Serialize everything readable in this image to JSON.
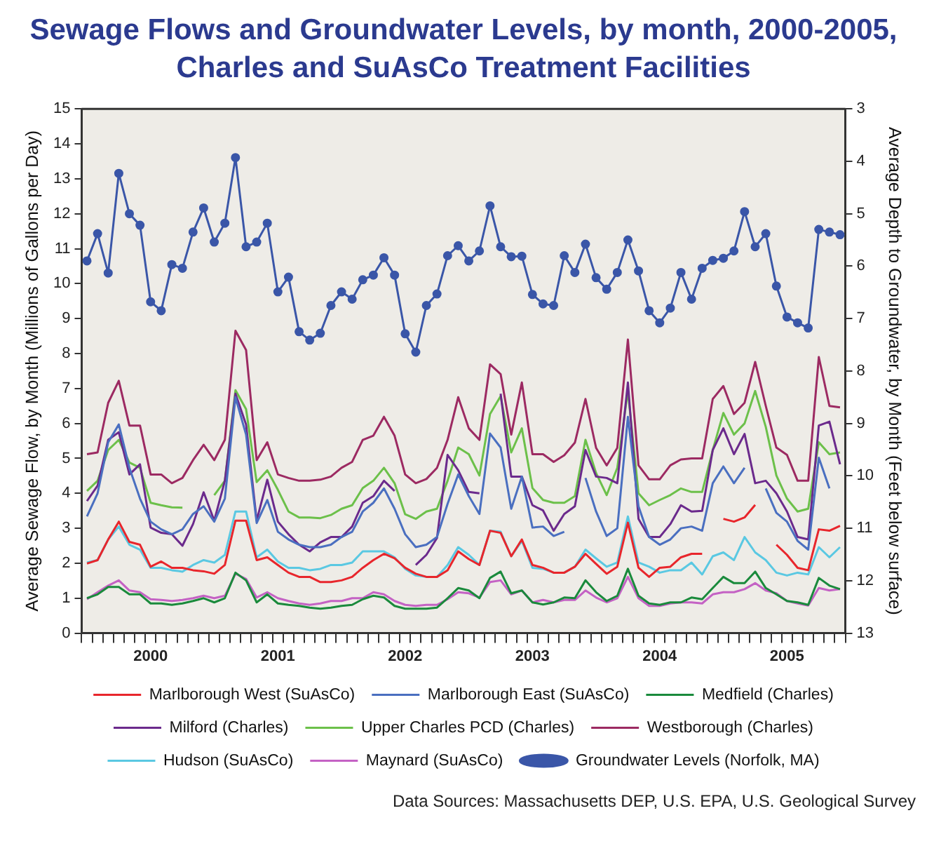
{
  "chart_data": {
    "type": "line",
    "title": "Sewage Flows and Groundwater Levels, by month, 2000-2005, Charles and SuAsCo Treatment Facilities",
    "ylabel": "Average Sewage Flow, by Month (Millions of Gallons per Day)",
    "y2label": "Average Depth to Groundwater, by Month (Feet below surface)",
    "annotations": [
      "Data Sources: Massachusetts DEP, U.S. EPA, U.S. Geological Survey"
    ],
    "categories": [
      null,
      null,
      null,
      null,
      null,
      null,
      "2000",
      null,
      null,
      null,
      null,
      null,
      null,
      null,
      null,
      null,
      null,
      null,
      "2001",
      null,
      null,
      null,
      null,
      null,
      null,
      null,
      null,
      null,
      null,
      null,
      "2002",
      null,
      null,
      null,
      null,
      null,
      null,
      null,
      null,
      null,
      null,
      null,
      "2003",
      null,
      null,
      null,
      null,
      null,
      null,
      null,
      null,
      null,
      null,
      null,
      "2004",
      null,
      null,
      null,
      null,
      null,
      null,
      null,
      null,
      null,
      null,
      null,
      "2005",
      null,
      null,
      null,
      null,
      null
    ],
    "ylim": [
      0,
      15
    ],
    "yticks": [
      0,
      1,
      2,
      3,
      4,
      5,
      6,
      7,
      8,
      9,
      10,
      11,
      12,
      13,
      14,
      15
    ],
    "y2lim": [
      13,
      3
    ],
    "y2ticks": [
      3,
      4,
      5,
      6,
      7,
      8,
      9,
      10,
      11,
      12,
      13
    ],
    "grid": false,
    "legend": "bottom",
    "marker": "none",
    "line_style": "solid",
    "series": [
      {
        "name": "Marlborough West (SuAsCo)",
        "color": "#e8262c",
        "values": [
          1.99,
          2.09,
          2.68,
          3.19,
          2.61,
          2.53,
          1.9,
          2.05,
          1.87,
          1.87,
          1.8,
          1.77,
          1.7,
          1.95,
          3.22,
          3.22,
          2.09,
          2.17,
          1.95,
          1.73,
          1.61,
          1.61,
          1.46,
          1.46,
          1.51,
          1.61,
          1.87,
          2.09,
          2.27,
          2.14,
          1.87,
          1.7,
          1.61,
          1.61,
          1.8,
          2.34,
          2.12,
          1.95,
          2.93,
          2.87,
          2.2,
          2.68,
          1.95,
          1.87,
          1.73,
          1.73,
          1.9,
          2.27,
          1.98,
          1.7,
          1.9,
          3.16,
          1.87,
          1.61,
          1.87,
          1.9,
          2.17,
          2.27,
          2.27,
          null,
          3.27,
          3.19,
          3.31,
          3.67,
          null,
          2.53,
          2.24,
          1.87,
          1.8,
          2.97,
          2.93,
          3.07
        ]
      },
      {
        "name": "Marlborough East (SuAsCo)",
        "color": "#4a6fc0",
        "values": [
          3.34,
          4.0,
          5.46,
          5.97,
          4.73,
          3.85,
          3.19,
          2.97,
          2.83,
          2.97,
          3.41,
          3.63,
          3.19,
          3.85,
          6.75,
          5.68,
          3.15,
          3.81,
          2.9,
          2.68,
          2.53,
          2.46,
          2.46,
          2.53,
          2.75,
          2.9,
          3.48,
          3.73,
          4.14,
          3.56,
          2.83,
          2.46,
          2.53,
          2.75,
          3.7,
          4.54,
          3.92,
          3.41,
          5.71,
          5.31,
          3.56,
          4.48,
          3.02,
          3.05,
          2.78,
          2.9,
          null,
          4.44,
          3.48,
          2.78,
          3.0,
          6.19,
          3.63,
          2.75,
          2.53,
          2.68,
          3.0,
          3.05,
          2.93,
          4.29,
          4.77,
          4.29,
          4.73,
          null,
          4.14,
          3.44,
          3.19,
          2.64,
          2.39,
          5.02,
          4.14,
          null
        ]
      },
      {
        "name": "Medfield (Charles)",
        "color": "#1a8a3c",
        "values": [
          1.0,
          1.11,
          1.32,
          1.32,
          1.11,
          1.11,
          0.85,
          0.85,
          0.81,
          0.85,
          0.92,
          1.0,
          0.88,
          1.0,
          1.73,
          1.51,
          0.88,
          1.11,
          0.85,
          0.81,
          0.78,
          0.73,
          0.7,
          0.73,
          0.78,
          0.81,
          0.97,
          1.07,
          1.02,
          0.78,
          0.7,
          0.7,
          0.7,
          0.73,
          1.0,
          1.29,
          1.22,
          1.0,
          1.58,
          1.76,
          1.14,
          1.22,
          0.88,
          0.82,
          0.88,
          1.02,
          1.0,
          1.51,
          1.17,
          0.92,
          1.07,
          1.84,
          1.07,
          0.85,
          0.81,
          0.88,
          0.88,
          1.02,
          0.97,
          1.29,
          1.61,
          1.43,
          1.43,
          1.76,
          1.29,
          1.11,
          0.92,
          0.88,
          0.81,
          1.58,
          1.36,
          1.26
        ]
      },
      {
        "name": "Milford (Charles)",
        "color": "#6b2a8c",
        "values": [
          3.78,
          4.22,
          5.53,
          5.75,
          4.54,
          4.83,
          3.02,
          2.87,
          2.83,
          2.5,
          3.12,
          4.03,
          3.22,
          4.36,
          6.85,
          5.97,
          3.22,
          4.39,
          3.19,
          2.83,
          2.53,
          2.34,
          2.6,
          2.75,
          2.75,
          3.05,
          3.73,
          3.92,
          4.36,
          4.07,
          null,
          1.95,
          2.24,
          2.72,
          5.1,
          4.66,
          4.04,
          4.0,
          null,
          6.85,
          4.48,
          4.48,
          3.66,
          3.51,
          2.93,
          3.41,
          3.63,
          5.24,
          4.48,
          4.44,
          4.29,
          7.17,
          3.27,
          2.75,
          2.75,
          3.12,
          3.66,
          3.48,
          3.5,
          5.24,
          5.86,
          5.12,
          5.7,
          4.29,
          4.36,
          4.0,
          3.48,
          2.75,
          2.68,
          5.94,
          6.05,
          4.83
        ]
      },
      {
        "name": "Upper Charles PCD (Charles)",
        "color": "#6cc04a",
        "values": [
          4.07,
          4.36,
          5.24,
          5.53,
          4.88,
          4.73,
          3.73,
          3.66,
          3.6,
          3.59,
          null,
          null,
          3.95,
          4.36,
          6.95,
          6.41,
          4.32,
          4.66,
          4.1,
          3.48,
          3.31,
          3.31,
          3.29,
          3.38,
          3.56,
          3.66,
          4.15,
          4.36,
          4.73,
          4.29,
          3.4,
          3.27,
          3.48,
          3.56,
          4.36,
          5.31,
          5.12,
          4.51,
          6.27,
          6.78,
          5.17,
          5.86,
          4.15,
          3.81,
          3.73,
          3.73,
          3.92,
          5.53,
          4.58,
          3.95,
          4.73,
          6.93,
          4.0,
          3.66,
          3.81,
          3.95,
          4.14,
          4.04,
          4.04,
          5.24,
          6.3,
          5.68,
          6.0,
          6.93,
          5.9,
          4.51,
          3.85,
          3.48,
          3.56,
          5.46,
          5.12,
          5.17
        ]
      },
      {
        "name": "Westborough (Charles)",
        "color": "#9c2a62",
        "values": [
          5.12,
          5.17,
          6.59,
          7.22,
          5.94,
          5.94,
          4.54,
          4.54,
          4.29,
          4.44,
          4.95,
          5.39,
          4.95,
          5.53,
          8.65,
          8.1,
          4.95,
          5.46,
          4.54,
          4.44,
          4.36,
          4.36,
          4.39,
          4.48,
          4.73,
          4.9,
          5.53,
          5.65,
          6.19,
          5.65,
          4.54,
          4.29,
          4.41,
          4.73,
          5.53,
          6.75,
          5.86,
          5.53,
          7.69,
          7.41,
          5.68,
          7.17,
          5.12,
          5.12,
          4.9,
          5.09,
          5.45,
          6.7,
          5.3,
          4.8,
          5.3,
          8.4,
          4.8,
          4.4,
          4.4,
          4.8,
          4.97,
          5.0,
          5.0,
          6.7,
          7.07,
          6.27,
          6.59,
          7.76,
          6.5,
          5.31,
          5.1,
          4.36,
          4.36,
          7.9,
          6.5,
          6.46
        ]
      },
      {
        "name": "Hudson (SuAsCo)",
        "color": "#5ac8e2",
        "values": [
          2.02,
          2.09,
          2.68,
          3.05,
          2.53,
          2.39,
          1.87,
          1.87,
          1.8,
          1.76,
          1.95,
          2.09,
          2.02,
          2.24,
          3.48,
          3.48,
          2.17,
          2.39,
          2.05,
          1.87,
          1.87,
          1.8,
          1.84,
          1.95,
          1.95,
          2.02,
          2.34,
          2.34,
          2.34,
          2.17,
          1.84,
          1.65,
          1.61,
          1.61,
          1.95,
          2.46,
          2.24,
          1.95,
          2.93,
          2.9,
          2.2,
          2.64,
          1.87,
          1.84,
          1.73,
          1.73,
          1.9,
          2.39,
          2.14,
          1.9,
          2.02,
          3.34,
          2.02,
          1.9,
          1.73,
          1.8,
          1.8,
          2.02,
          1.68,
          2.2,
          2.31,
          2.09,
          2.75,
          2.31,
          2.09,
          1.73,
          1.65,
          1.73,
          1.68,
          2.46,
          2.17,
          2.46
        ]
      },
      {
        "name": "Maynard (SuAsCo)",
        "color": "#c462c4",
        "values": [
          0.97,
          1.17,
          1.36,
          1.51,
          1.22,
          1.17,
          0.97,
          0.95,
          0.92,
          0.95,
          1.0,
          1.07,
          1.0,
          1.07,
          1.7,
          1.55,
          1.02,
          1.17,
          1.0,
          0.92,
          0.85,
          0.81,
          0.85,
          0.92,
          0.92,
          1.0,
          1.0,
          1.17,
          1.11,
          0.92,
          0.81,
          0.78,
          0.81,
          0.81,
          0.97,
          1.17,
          1.14,
          1.02,
          1.46,
          1.51,
          1.11,
          1.22,
          0.88,
          0.95,
          0.88,
          0.95,
          0.95,
          1.22,
          1.02,
          0.88,
          1.0,
          1.61,
          1.0,
          0.78,
          0.78,
          0.85,
          0.88,
          0.88,
          0.85,
          1.11,
          1.17,
          1.17,
          1.26,
          1.43,
          1.22,
          1.14,
          0.92,
          0.85,
          0.79,
          1.29,
          1.22,
          1.26
        ]
      },
      {
        "name": "Groundwater Levels (Norfolk, MA)",
        "color": "#3a56a8",
        "axis": "y2",
        "marker": "circle",
        "values": [
          5.9,
          5.38,
          6.13,
          4.23,
          5.0,
          5.22,
          6.68,
          6.85,
          5.97,
          6.04,
          5.35,
          4.89,
          5.54,
          5.18,
          3.93,
          5.63,
          5.54,
          5.18,
          6.49,
          6.21,
          7.25,
          7.41,
          7.28,
          6.75,
          6.49,
          6.63,
          6.26,
          6.17,
          5.84,
          6.17,
          7.29,
          7.64,
          6.75,
          6.53,
          5.8,
          5.61,
          5.9,
          5.71,
          4.85,
          5.63,
          5.82,
          5.81,
          6.54,
          6.72,
          6.75,
          5.8,
          6.12,
          5.58,
          6.22,
          6.44,
          6.12,
          5.5,
          6.09,
          6.85,
          7.08,
          6.8,
          6.12,
          6.63,
          6.04,
          5.89,
          5.85,
          5.71,
          4.96,
          5.63,
          5.38,
          6.38,
          6.97,
          7.08,
          7.18,
          5.3,
          5.35,
          5.4
        ]
      }
    ]
  }
}
